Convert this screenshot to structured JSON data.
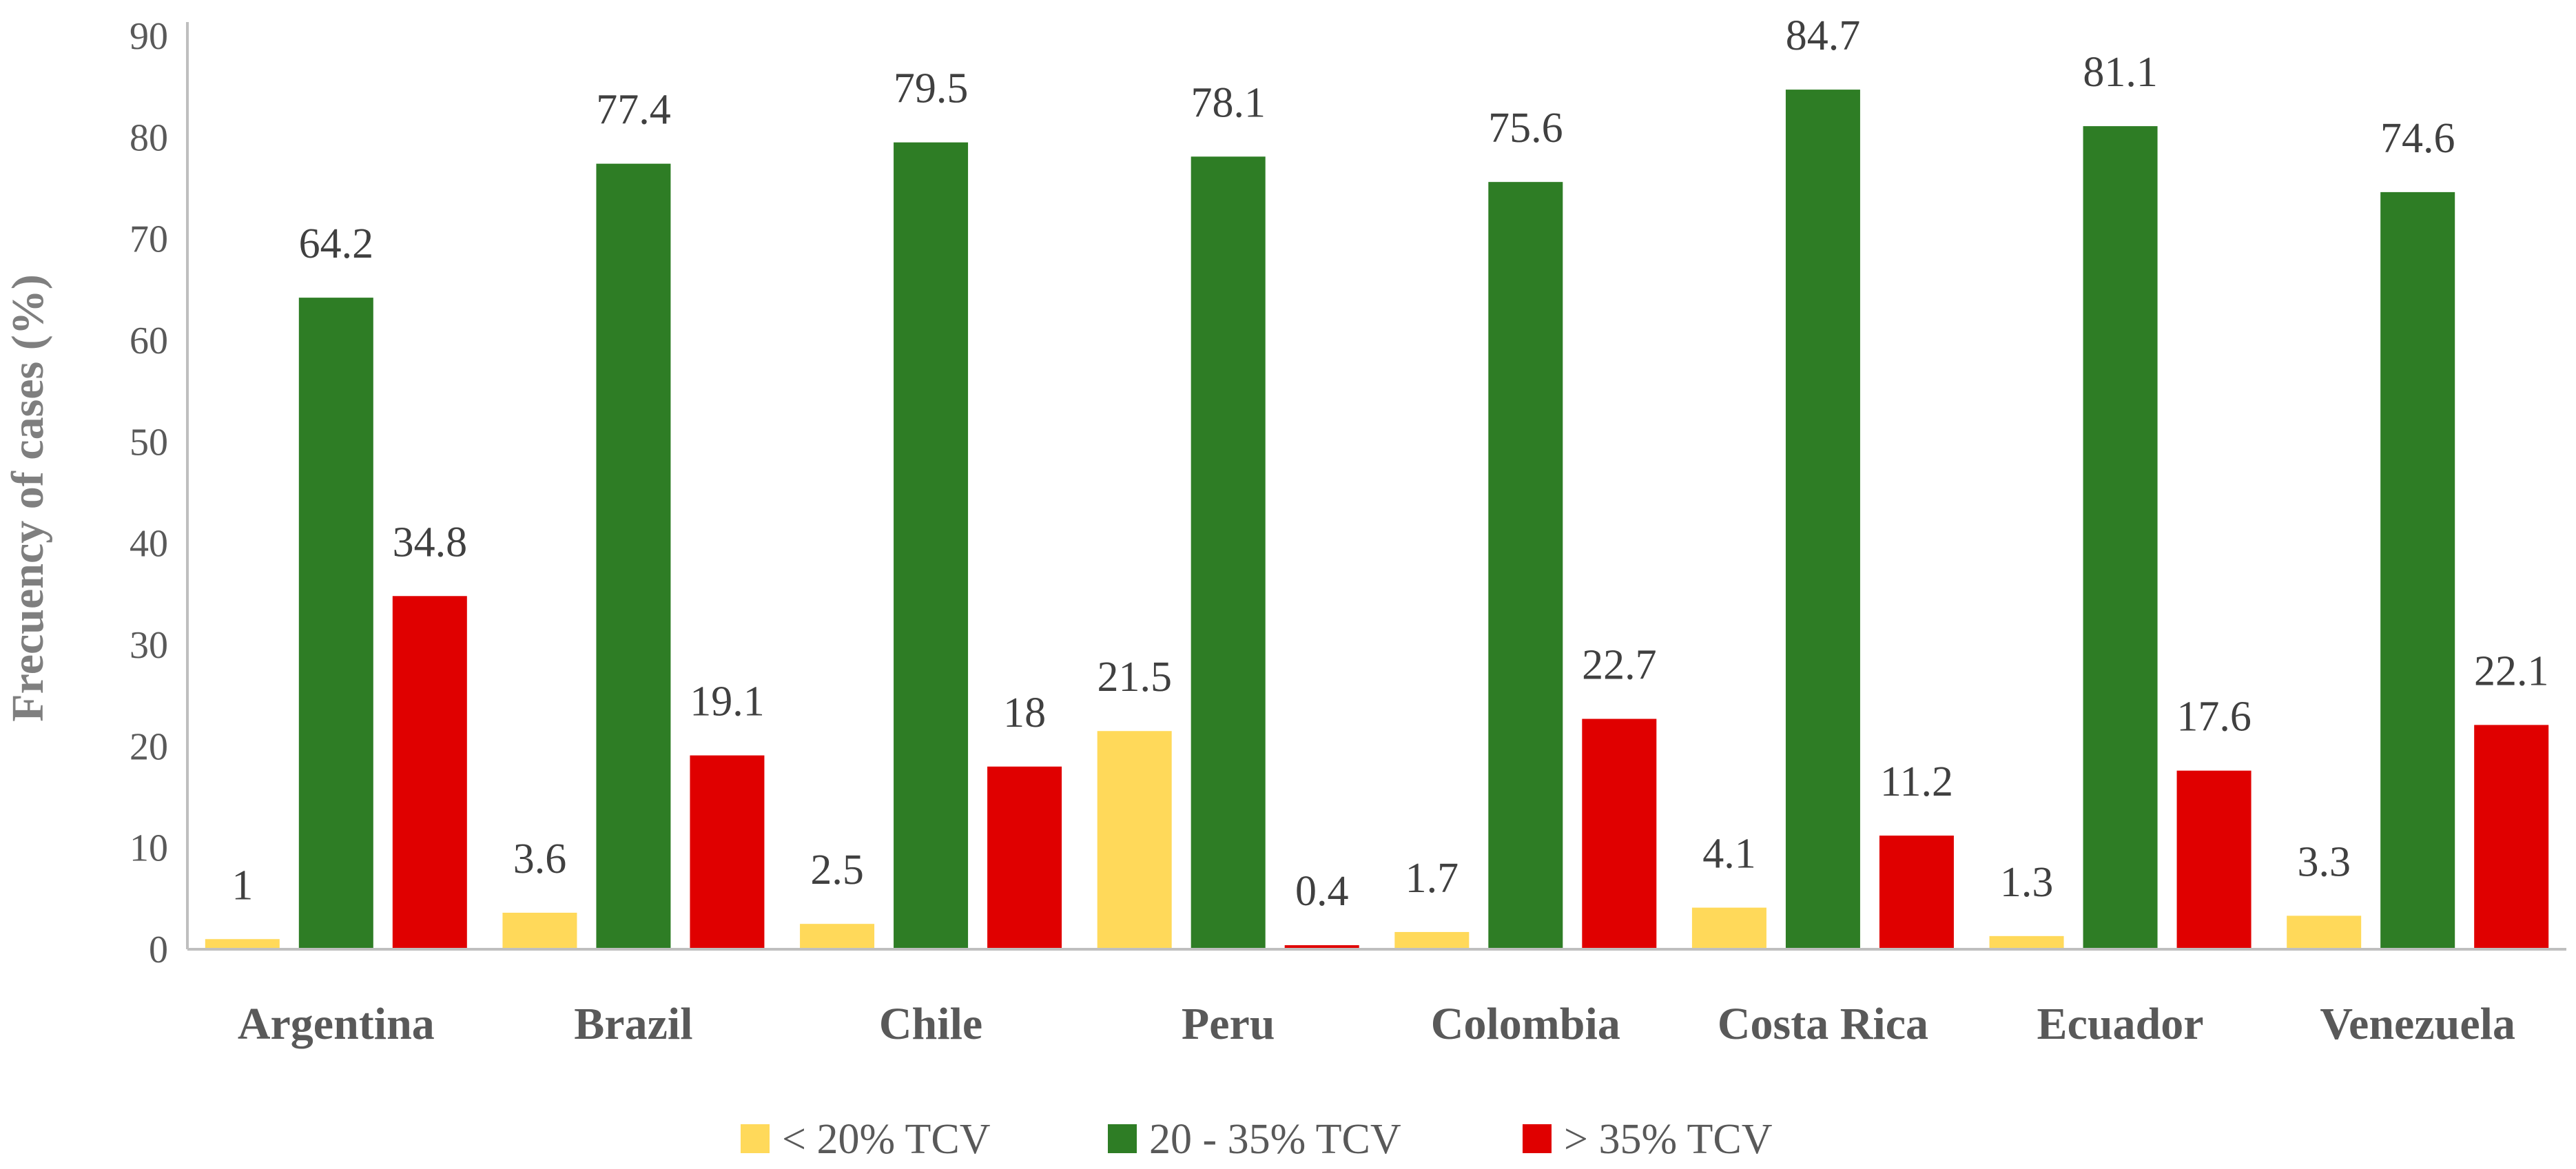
{
  "chart_data": {
    "type": "bar",
    "ylabel": "Frecuency of cases (%)",
    "xlabel": "",
    "ylim": [
      0,
      90
    ],
    "yticks": [
      0,
      10,
      20,
      30,
      40,
      50,
      60,
      70,
      80,
      90
    ],
    "grid": false,
    "legend_position": "bottom",
    "categories": [
      "Argentina",
      "Brazil",
      "Chile",
      "Peru",
      "Colombia",
      "Costa Rica",
      "Ecuador",
      "Venezuela"
    ],
    "series": [
      {
        "name": "< 20% TCV",
        "color": "#ffd95a",
        "values": [
          1,
          3.6,
          2.5,
          21.5,
          1.7,
          4.1,
          1.3,
          3.3
        ]
      },
      {
        "name": "20 - 35% TCV",
        "color": "#2e7d25",
        "values": [
          64.2,
          77.4,
          79.5,
          78.1,
          75.6,
          84.7,
          81.1,
          74.6
        ]
      },
      {
        "name": "> 35% TCV",
        "color": "#e00000",
        "values": [
          34.8,
          19.1,
          18,
          0.4,
          22.7,
          11.2,
          17.6,
          22.1
        ]
      }
    ]
  }
}
